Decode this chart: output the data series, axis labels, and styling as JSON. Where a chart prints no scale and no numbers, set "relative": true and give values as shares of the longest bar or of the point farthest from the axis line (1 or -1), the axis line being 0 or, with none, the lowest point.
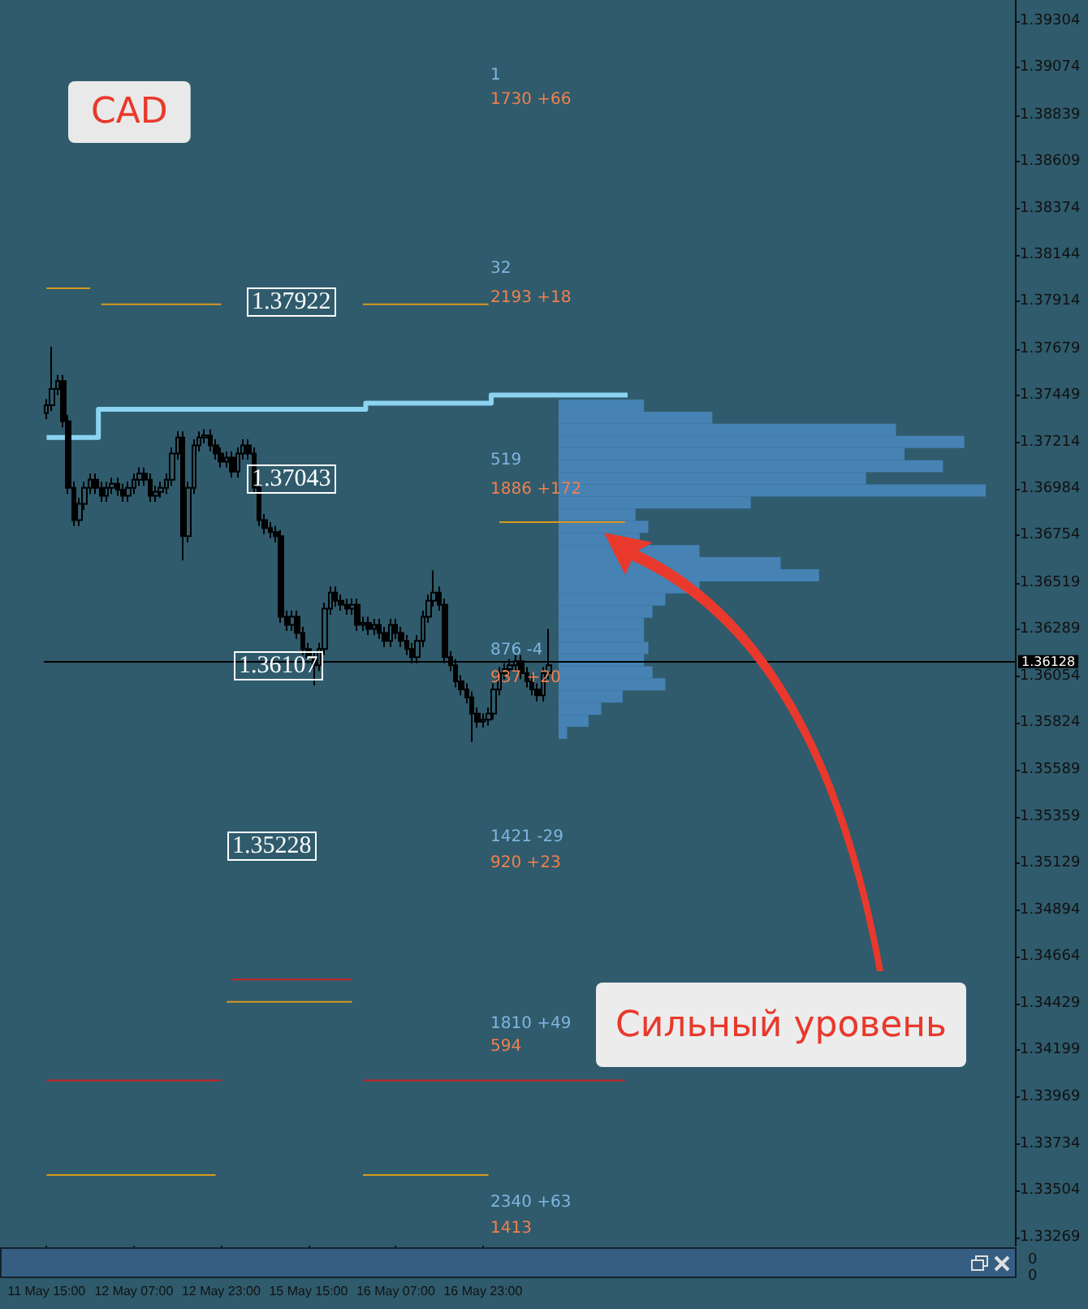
{
  "chart_data": [
    {
      "type": "candlestick",
      "title": "CAD",
      "color": "#000000",
      "categories": [
        "11 May 15:00",
        null,
        null,
        null,
        null,
        null,
        null,
        null,
        null,
        null,
        null,
        null,
        null,
        null,
        null,
        null,
        "12 May 07:00",
        null,
        null,
        null,
        null,
        null,
        null,
        null,
        null,
        null,
        null,
        null,
        null,
        null,
        null,
        null,
        "12 May 23:00",
        null,
        null,
        null,
        null,
        null,
        null,
        null,
        null,
        null,
        null,
        null,
        null,
        null,
        null,
        null,
        "15 May 15:00",
        null,
        null,
        null,
        null,
        null,
        null,
        null,
        null,
        null,
        null,
        null,
        null,
        null,
        null,
        null,
        "16 May 07:00",
        null,
        null,
        null,
        null,
        null,
        null,
        null,
        null,
        null,
        null,
        null,
        null,
        null,
        null,
        null,
        "16 May 23:00",
        null,
        null,
        null,
        null,
        null,
        null,
        null,
        null,
        null,
        null,
        null,
        null,
        null,
        null,
        null,
        null,
        null,
        null,
        null,
        null,
        null,
        null,
        null,
        null,
        null,
        null,
        null,
        null,
        null,
        null,
        null,
        null,
        null,
        null,
        null,
        null,
        null,
        null,
        null,
        null,
        null,
        null,
        null,
        null,
        null,
        null,
        null,
        null,
        null,
        null,
        null,
        null,
        null,
        null,
        null,
        null,
        null,
        null,
        null,
        null,
        null,
        null,
        null,
        null,
        null,
        null,
        null,
        null,
        null,
        null,
        null,
        null,
        null,
        null,
        null,
        null,
        null,
        null,
        null,
        null,
        null,
        null,
        null,
        null,
        null,
        null,
        null,
        null,
        null,
        null,
        null,
        null,
        null,
        null,
        null,
        null,
        null
      ],
      "ohlc": [
        [
          1.3736,
          1.3743,
          1.3733,
          1.374
        ],
        [
          1.374,
          1.3769,
          1.3737,
          1.3748
        ],
        [
          1.3748,
          1.3755,
          1.3745,
          1.3752
        ],
        [
          1.3752,
          1.3755,
          1.3729,
          1.3732
        ],
        [
          1.3732,
          1.3735,
          1.3696,
          1.3699
        ],
        [
          1.3699,
          1.3702,
          1.368,
          1.3683
        ],
        [
          1.3683,
          1.3694,
          1.368,
          1.3691
        ],
        [
          1.3691,
          1.3702,
          1.3688,
          1.3699
        ],
        [
          1.3699,
          1.3706,
          1.3696,
          1.3703
        ],
        [
          1.3703,
          1.3706,
          1.3696,
          1.3699
        ],
        [
          1.3699,
          1.3702,
          1.3692,
          1.3695
        ],
        [
          1.3695,
          1.3702,
          1.3692,
          1.3699
        ],
        [
          1.3699,
          1.3704,
          1.3696,
          1.3701
        ],
        [
          1.3701,
          1.3704,
          1.3695,
          1.3698
        ],
        [
          1.3698,
          1.3701,
          1.3692,
          1.3695
        ],
        [
          1.3695,
          1.3702,
          1.3692,
          1.3699
        ],
        [
          1.3699,
          1.3706,
          1.3696,
          1.3703
        ],
        [
          1.3703,
          1.3709,
          1.37,
          1.3706
        ],
        [
          1.3706,
          1.3709,
          1.37,
          1.3703
        ],
        [
          1.3703,
          1.3706,
          1.3692,
          1.3695
        ],
        [
          1.3695,
          1.37,
          1.3692,
          1.3697
        ],
        [
          1.3697,
          1.3702,
          1.3694,
          1.3699
        ],
        [
          1.3699,
          1.3706,
          1.3696,
          1.3703
        ],
        [
          1.3703,
          1.3719,
          1.37,
          1.3716
        ],
        [
          1.3716,
          1.3727,
          1.3713,
          1.3724
        ],
        [
          1.3724,
          1.3727,
          1.3663,
          1.3675
        ],
        [
          1.3675,
          1.3702,
          1.3672,
          1.3699
        ],
        [
          1.3699,
          1.3723,
          1.3696,
          1.372
        ],
        [
          1.372,
          1.3727,
          1.3717,
          1.3724
        ],
        [
          1.3724,
          1.3728,
          1.3721,
          1.3725
        ],
        [
          1.3725,
          1.3728,
          1.3717,
          1.372
        ],
        [
          1.372,
          1.3723,
          1.3713,
          1.3716
        ],
        [
          1.3716,
          1.3719,
          1.3709,
          1.3712
        ],
        [
          1.3712,
          1.3717,
          1.3709,
          1.3714
        ],
        [
          1.3714,
          1.3717,
          1.3704,
          1.3707
        ],
        [
          1.3707,
          1.3719,
          1.3704,
          1.3716
        ],
        [
          1.3716,
          1.3723,
          1.3713,
          1.372
        ],
        [
          1.372,
          1.3723,
          1.3713,
          1.3716
        ],
        [
          1.3716,
          1.3719,
          1.3696,
          1.3699
        ],
        [
          1.3699,
          1.3702,
          1.368,
          1.3683
        ],
        [
          1.3683,
          1.3686,
          1.3676,
          1.3679
        ],
        [
          1.3679,
          1.3682,
          1.3674,
          1.3677
        ],
        [
          1.3677,
          1.368,
          1.3672,
          1.3675
        ],
        [
          1.3675,
          1.3678,
          1.3632,
          1.3635
        ],
        [
          1.3635,
          1.3638,
          1.3628,
          1.3631
        ],
        [
          1.3631,
          1.3638,
          1.3628,
          1.3635
        ],
        [
          1.3635,
          1.3638,
          1.3624,
          1.3627
        ],
        [
          1.3627,
          1.363,
          1.3616,
          1.3619
        ],
        [
          1.3619,
          1.3622,
          1.3612,
          1.3615
        ],
        [
          1.3615,
          1.3618,
          1.3601,
          1.3611
        ],
        [
          1.3611,
          1.3622,
          1.3608,
          1.3619
        ],
        [
          1.3619,
          1.3642,
          1.3616,
          1.3639
        ],
        [
          1.3639,
          1.365,
          1.3636,
          1.3647
        ],
        [
          1.3647,
          1.365,
          1.364,
          1.3643
        ],
        [
          1.3643,
          1.3646,
          1.3638,
          1.3641
        ],
        [
          1.3641,
          1.3644,
          1.3636,
          1.3639
        ],
        [
          1.3639,
          1.3644,
          1.3636,
          1.3641
        ],
        [
          1.3641,
          1.3644,
          1.3628,
          1.3631
        ],
        [
          1.3631,
          1.3635,
          1.3628,
          1.3632
        ],
        [
          1.3632,
          1.3635,
          1.3626,
          1.3629
        ],
        [
          1.3629,
          1.3634,
          1.3626,
          1.3631
        ],
        [
          1.3631,
          1.3634,
          1.3624,
          1.3627
        ],
        [
          1.3627,
          1.363,
          1.362,
          1.3623
        ],
        [
          1.3623,
          1.3634,
          1.362,
          1.3631
        ],
        [
          1.3631,
          1.3634,
          1.3624,
          1.3627
        ],
        [
          1.3627,
          1.363,
          1.362,
          1.3623
        ],
        [
          1.3623,
          1.3626,
          1.3616,
          1.3619
        ],
        [
          1.3619,
          1.3622,
          1.3612,
          1.3615
        ],
        [
          1.3615,
          1.3626,
          1.3612,
          1.3623
        ],
        [
          1.3623,
          1.3638,
          1.362,
          1.3635
        ],
        [
          1.3635,
          1.3646,
          1.3632,
          1.3643
        ],
        [
          1.3643,
          1.3658,
          1.364,
          1.3647
        ],
        [
          1.3647,
          1.365,
          1.3638,
          1.3641
        ],
        [
          1.3641,
          1.3644,
          1.3612,
          1.3615
        ],
        [
          1.3615,
          1.3618,
          1.3608,
          1.3611
        ],
        [
          1.3611,
          1.3614,
          1.36,
          1.3603
        ],
        [
          1.3603,
          1.3606,
          1.3596,
          1.3599
        ],
        [
          1.3599,
          1.3602,
          1.3592,
          1.3595
        ],
        [
          1.3595,
          1.3598,
          1.3573,
          1.3587
        ],
        [
          1.3587,
          1.359,
          1.358,
          1.3583
        ],
        [
          1.3583,
          1.3587,
          1.358,
          1.3584
        ],
        [
          1.3584,
          1.359,
          1.3581,
          1.3587
        ],
        [
          1.3587,
          1.3602,
          1.3584,
          1.3599
        ],
        [
          1.3599,
          1.361,
          1.3596,
          1.3607
        ],
        [
          1.3607,
          1.3612,
          1.3604,
          1.3609
        ],
        [
          1.3609,
          1.3614,
          1.3606,
          1.3611
        ],
        [
          1.3611,
          1.3616,
          1.3608,
          1.3613
        ],
        [
          1.3613,
          1.3616,
          1.3604,
          1.3607
        ],
        [
          1.3607,
          1.361,
          1.36,
          1.3603
        ],
        [
          1.3603,
          1.3606,
          1.3596,
          1.3599
        ],
        [
          1.3599,
          1.3602,
          1.3593,
          1.3596
        ],
        [
          1.3596,
          1.361,
          1.3593,
          1.3607
        ],
        [
          1.3607,
          1.3629,
          1.3604,
          1.3611
        ],
        null,
        null,
        null,
        null,
        null,
        null,
        null,
        null,
        null,
        null,
        null,
        null,
        null,
        null,
        null,
        null,
        null,
        null,
        null,
        null,
        null,
        null,
        null,
        null,
        null,
        null,
        null,
        null,
        null,
        null,
        null,
        null,
        null,
        null,
        null,
        null,
        null,
        null,
        null,
        null,
        null,
        null,
        null,
        null,
        null,
        null,
        null,
        null,
        null,
        null,
        null,
        null,
        null,
        null,
        null,
        null,
        null,
        null,
        null,
        null,
        null,
        null,
        null,
        null,
        null,
        null,
        null,
        null,
        null,
        null,
        null,
        null,
        null,
        null,
        null,
        null,
        null,
        null,
        null,
        null,
        null,
        null,
        null,
        null,
        null
      ],
      "series": [
        {
          "type": "step",
          "color": "#8cd3f2",
          "values": [
            1.3724,
            1.3724,
            1.3724,
            1.3724,
            1.3724,
            1.3724,
            1.3724,
            1.3724,
            1.3724,
            1.3724,
            1.3738,
            1.3738,
            1.3738,
            1.3738,
            1.3738,
            1.3738,
            1.3738,
            1.3738,
            1.3738,
            1.3738,
            1.3738,
            1.3738,
            1.3738,
            1.3738,
            1.3738,
            1.3738,
            1.3738,
            1.3738,
            1.3738,
            1.3738,
            1.3738,
            1.3738,
            1.3738,
            1.3738,
            1.3738,
            1.3738,
            1.3738,
            1.3738,
            1.3738,
            1.3738,
            1.3738,
            1.3738,
            1.3738,
            1.3738,
            1.3738,
            1.3738,
            1.3738,
            1.3738,
            1.3738,
            1.3738,
            1.3738,
            1.3738,
            1.3738,
            1.3738,
            1.3738,
            1.3738,
            1.3738,
            1.3738,
            1.3738,
            1.3741,
            1.3741,
            1.3741,
            1.3741,
            1.3741,
            1.3741,
            1.3741,
            1.3741,
            1.3741,
            1.3741,
            1.3741,
            1.3741,
            1.3741,
            1.3741,
            1.3741,
            1.3741,
            1.3741,
            1.3741,
            1.3741,
            1.3741,
            1.3741,
            1.3741,
            1.3741,
            1.3745,
            1.3745,
            1.3745,
            1.3745,
            1.3745,
            1.3745,
            1.3745,
            1.3745,
            1.3745,
            1.3745,
            1.3745,
            1.3745,
            1.3745,
            1.3745,
            1.3745,
            1.3745,
            1.3745,
            1.3745,
            1.3745,
            1.3745,
            1.3745,
            1.3745,
            1.3745,
            1.3745,
            1.3745,
            null,
            null,
            null,
            null,
            null,
            null,
            null,
            null,
            null,
            null,
            null,
            null,
            null,
            null,
            null,
            null,
            null,
            null,
            null,
            null,
            null,
            null,
            null,
            null,
            null,
            null,
            null,
            null,
            null,
            null,
            null,
            null,
            null,
            null,
            null,
            null,
            null,
            null,
            null,
            null,
            null,
            null,
            null,
            null,
            null,
            null,
            null,
            null,
            null,
            null,
            null,
            null,
            null,
            null,
            null,
            null,
            null,
            null,
            null,
            null,
            null,
            null,
            null,
            null,
            null,
            null,
            null,
            null,
            null,
            null,
            null
          ]
        },
        {
          "type": "line",
          "color": "#d99a1c",
          "values": [
            1.3798,
            1.3798,
            1.3798,
            1.3798,
            1.3798,
            1.3798,
            1.3798,
            1.3798,
            1.3798,
            null,
            1.379,
            1.379,
            1.379,
            1.379,
            1.379,
            1.379,
            1.379,
            1.379,
            1.379,
            1.379,
            1.379,
            1.379,
            1.379,
            1.379,
            1.379,
            1.379,
            1.379,
            1.379,
            1.379,
            1.379,
            1.379,
            1.379,
            1.379,
            null,
            null,
            null,
            null,
            null,
            null,
            null,
            null,
            null,
            null,
            null,
            null,
            null,
            null,
            null,
            null,
            null,
            null,
            null,
            null,
            null,
            null,
            null,
            null,
            null,
            1.379,
            1.379,
            1.379,
            1.379,
            1.379,
            1.379,
            1.379,
            1.379,
            1.379,
            1.379,
            1.379,
            1.379,
            1.379,
            1.379,
            1.379,
            1.379,
            1.379,
            1.379,
            1.379,
            1.379,
            1.379,
            1.379,
            1.379,
            1.379,
            null,
            1.3682,
            1.3682,
            1.3682,
            1.3682,
            1.3682,
            1.3682,
            1.3682,
            1.3682,
            1.3682,
            1.3682,
            1.3682,
            1.3682,
            1.3682,
            1.3682,
            1.3682,
            1.3682,
            1.3682,
            1.3682,
            1.3682,
            1.3682,
            1.3682,
            1.3682,
            1.3682,
            1.3682,
            null,
            null,
            null,
            null,
            null,
            null,
            null,
            null,
            null,
            null,
            null,
            null,
            null,
            null,
            null,
            null,
            null,
            null,
            null,
            null,
            null,
            null,
            null,
            null,
            null,
            null,
            null,
            null,
            null,
            null,
            null,
            null,
            null,
            null,
            null,
            null,
            null,
            null,
            null,
            null,
            null,
            null,
            null,
            null,
            null,
            null,
            null,
            null,
            null,
            null,
            null,
            null,
            null,
            null,
            null,
            null,
            null,
            null,
            null,
            null,
            null,
            null,
            null,
            null,
            null,
            null,
            null,
            null,
            null,
            null,
            null
          ]
        },
        {
          "type": "line",
          "color": "#d99a1c",
          "values": [
            1.3358,
            1.3358,
            1.3358,
            1.3358,
            1.3358,
            1.3358,
            1.3358,
            1.3358,
            1.3358,
            1.3358,
            1.3358,
            1.3358,
            1.3358,
            1.3358,
            1.3358,
            1.3358,
            1.3358,
            1.3358,
            1.3358,
            1.3358,
            1.3358,
            1.3358,
            1.3358,
            1.3358,
            1.3358,
            1.3358,
            1.3358,
            1.3358,
            1.3358,
            1.3358,
            1.3358,
            1.3358,
            null,
            1.3444,
            1.3444,
            1.3444,
            1.3444,
            1.3444,
            1.3444,
            1.3444,
            1.3444,
            1.3444,
            1.3444,
            1.3444,
            1.3444,
            1.3444,
            1.3444,
            1.3444,
            1.3444,
            1.3444,
            1.3444,
            1.3444,
            1.3444,
            1.3444,
            1.3444,
            1.3444,
            1.3444,
            null,
            1.3358,
            1.3358,
            1.3358,
            1.3358,
            1.3358,
            1.3358,
            1.3358,
            1.3358,
            1.3358,
            1.3358,
            1.3358,
            1.3358,
            1.3358,
            1.3358,
            1.3358,
            1.3358,
            1.3358,
            1.3358,
            1.3358,
            1.3358,
            1.3358,
            1.3358,
            1.3358,
            1.3358,
            null,
            null,
            null,
            null,
            null,
            null,
            null,
            null,
            null,
            null,
            null,
            null,
            null,
            null,
            null,
            null,
            null,
            null,
            null,
            null,
            null,
            null,
            null,
            null,
            null,
            null,
            null,
            null,
            null,
            null,
            null,
            null,
            null,
            null,
            null,
            null,
            null,
            null,
            null,
            null,
            null,
            null,
            null,
            null,
            null,
            null,
            null,
            null,
            null,
            null,
            null,
            null,
            null,
            null,
            null,
            null,
            null,
            null,
            null,
            null,
            null,
            null,
            null,
            null,
            null,
            null,
            null,
            null,
            null,
            null,
            null,
            null,
            null,
            null,
            null,
            null,
            null,
            null,
            null,
            null,
            null,
            null,
            null,
            null,
            null,
            null,
            null,
            null,
            null,
            null,
            null,
            null,
            null,
            null,
            null,
            null
          ]
        },
        {
          "type": "line",
          "color": "#cc2222",
          "values": [
            1.3405,
            1.3405,
            1.3405,
            1.3405,
            1.3405,
            1.3405,
            1.3405,
            1.3405,
            1.3405,
            1.3405,
            1.3405,
            1.3405,
            1.3405,
            1.3405,
            1.3405,
            1.3405,
            1.3405,
            1.3405,
            1.3405,
            1.3405,
            1.3405,
            1.3405,
            1.3405,
            1.3405,
            1.3405,
            1.3405,
            1.3405,
            1.3405,
            1.3405,
            1.3405,
            1.3405,
            1.3405,
            1.3405,
            null,
            1.3455,
            1.3455,
            1.3455,
            1.3455,
            1.3455,
            1.3455,
            1.3455,
            1.3455,
            1.3455,
            1.3455,
            1.3455,
            1.3455,
            1.3455,
            1.3455,
            1.3455,
            1.3455,
            1.3455,
            1.3455,
            1.3455,
            1.3455,
            1.3455,
            1.3455,
            1.3455,
            null,
            1.3405,
            1.3405,
            1.3405,
            1.3405,
            1.3405,
            1.3405,
            1.3405,
            1.3405,
            1.3405,
            1.3405,
            1.3405,
            1.3405,
            1.3405,
            1.3405,
            1.3405,
            1.3405,
            1.3405,
            1.3405,
            1.3405,
            1.3405,
            1.3405,
            1.3405,
            1.3405,
            1.3405,
            1.3405,
            1.3405,
            1.3405,
            1.3405,
            1.3405,
            1.3405,
            1.3405,
            1.3405,
            1.3405,
            1.3405,
            1.3405,
            1.3405,
            1.3405,
            1.3405,
            1.3405,
            1.3405,
            1.3405,
            1.3405,
            1.3405,
            1.3405,
            1.3405,
            1.3405,
            1.3405,
            1.3405,
            1.3405,
            null,
            null,
            null,
            null,
            null,
            null,
            null,
            null,
            null,
            null,
            null,
            null,
            null,
            null,
            null,
            null,
            null,
            null,
            null,
            null,
            null,
            null,
            null,
            null,
            null,
            null,
            null,
            null,
            null,
            null,
            null,
            null,
            null,
            null,
            null,
            null,
            null,
            null,
            null,
            null,
            null,
            null,
            null,
            null,
            null,
            null,
            null,
            null,
            null,
            null,
            null,
            null,
            null,
            null,
            null,
            null,
            null,
            null,
            null,
            null,
            null,
            null,
            null,
            null,
            null,
            null,
            null,
            null,
            null,
            null,
            null
          ]
        }
      ],
      "ylim": [
        1.3323,
        1.3941
      ],
      "yticks": [
        1.39304,
        1.39074,
        1.38839,
        1.38609,
        1.38374,
        1.38144,
        1.37914,
        1.37679,
        1.37449,
        1.37214,
        1.36984,
        1.36754,
        1.36519,
        1.36289,
        1.36054,
        1.35824,
        1.35589,
        1.35359,
        1.35129,
        1.34894,
        1.34664,
        1.34429,
        1.34199,
        1.33969,
        1.33734,
        1.33504,
        1.33269
      ],
      "ref_lines": [
        {
          "axis": "y",
          "value": 1.36128,
          "label": "1.36128",
          "color": "#000000"
        }
      ],
      "annotations": [
        "1.37922",
        "1.37043",
        "1.36107",
        "1.35228",
        "1",
        "1730 +66",
        "32",
        "2193 +18",
        "519",
        "1886 +172",
        "876 -4",
        "937 +20",
        "1421 -29",
        "920 +23",
        "1810 +49",
        "594",
        "2340 +63",
        "1413",
        "Сильный уровень"
      ]
    },
    {
      "type": "bar",
      "orientation": "horizontal",
      "relative": true,
      "color": "#4682b4",
      "categories": [
        null,
        null,
        null,
        null,
        null,
        null,
        null,
        null,
        null,
        null,
        null,
        null,
        null,
        null,
        null,
        null,
        null,
        null,
        null,
        null,
        null,
        null,
        null,
        null,
        null,
        null,
        null,
        null
      ],
      "values": [
        0.2,
        0.36,
        0.79,
        0.95,
        0.81,
        0.9,
        0.72,
        1,
        0.45,
        0.18,
        0.21,
        0.19,
        0.33,
        0.52,
        0.61,
        0.33,
        0.25,
        0.22,
        0.2,
        0.2,
        0.21,
        0.2,
        0.22,
        0.25,
        0.15,
        0.1,
        0.07,
        0.02
      ]
    },
    {
      "type": "other",
      "annotations": [
        "0",
        "0"
      ]
    }
  ]
}
